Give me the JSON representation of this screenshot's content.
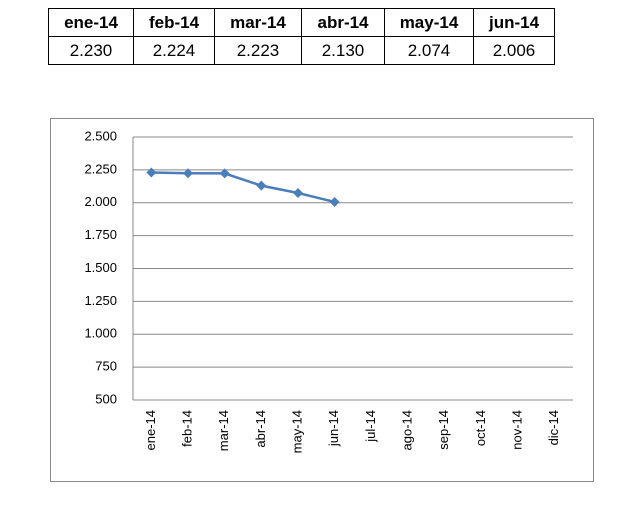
{
  "table": {
    "header": [
      "ene-14",
      "feb-14",
      "mar-14",
      "abr-14",
      "may-14",
      "jun-14"
    ],
    "rows": [
      [
        "2.230",
        "2.224",
        "2.223",
        "2.130",
        "2.074",
        "2.006"
      ]
    ]
  },
  "chart_data": {
    "type": "line",
    "categories": [
      "ene-14",
      "feb-14",
      "mar-14",
      "abr-14",
      "may-14",
      "jun-14",
      "jul-14",
      "ago-14",
      "sep-14",
      "oct-14",
      "nov-14",
      "dic-14"
    ],
    "values": [
      2230,
      2224,
      2223,
      2130,
      2074,
      2006,
      null,
      null,
      null,
      null,
      null,
      null
    ],
    "color": "#4a7ebb",
    "ylim": [
      500,
      2500
    ],
    "yticks": [
      {
        "value": 2500,
        "label": "2.500"
      },
      {
        "value": 2250,
        "label": "2.250"
      },
      {
        "value": 2000,
        "label": "2.000"
      },
      {
        "value": 1750,
        "label": "1.750"
      },
      {
        "value": 1500,
        "label": "1.500"
      },
      {
        "value": 1250,
        "label": "1.250"
      },
      {
        "value": 1000,
        "label": "1.000"
      },
      750,
      500
    ],
    "grid": true
  }
}
